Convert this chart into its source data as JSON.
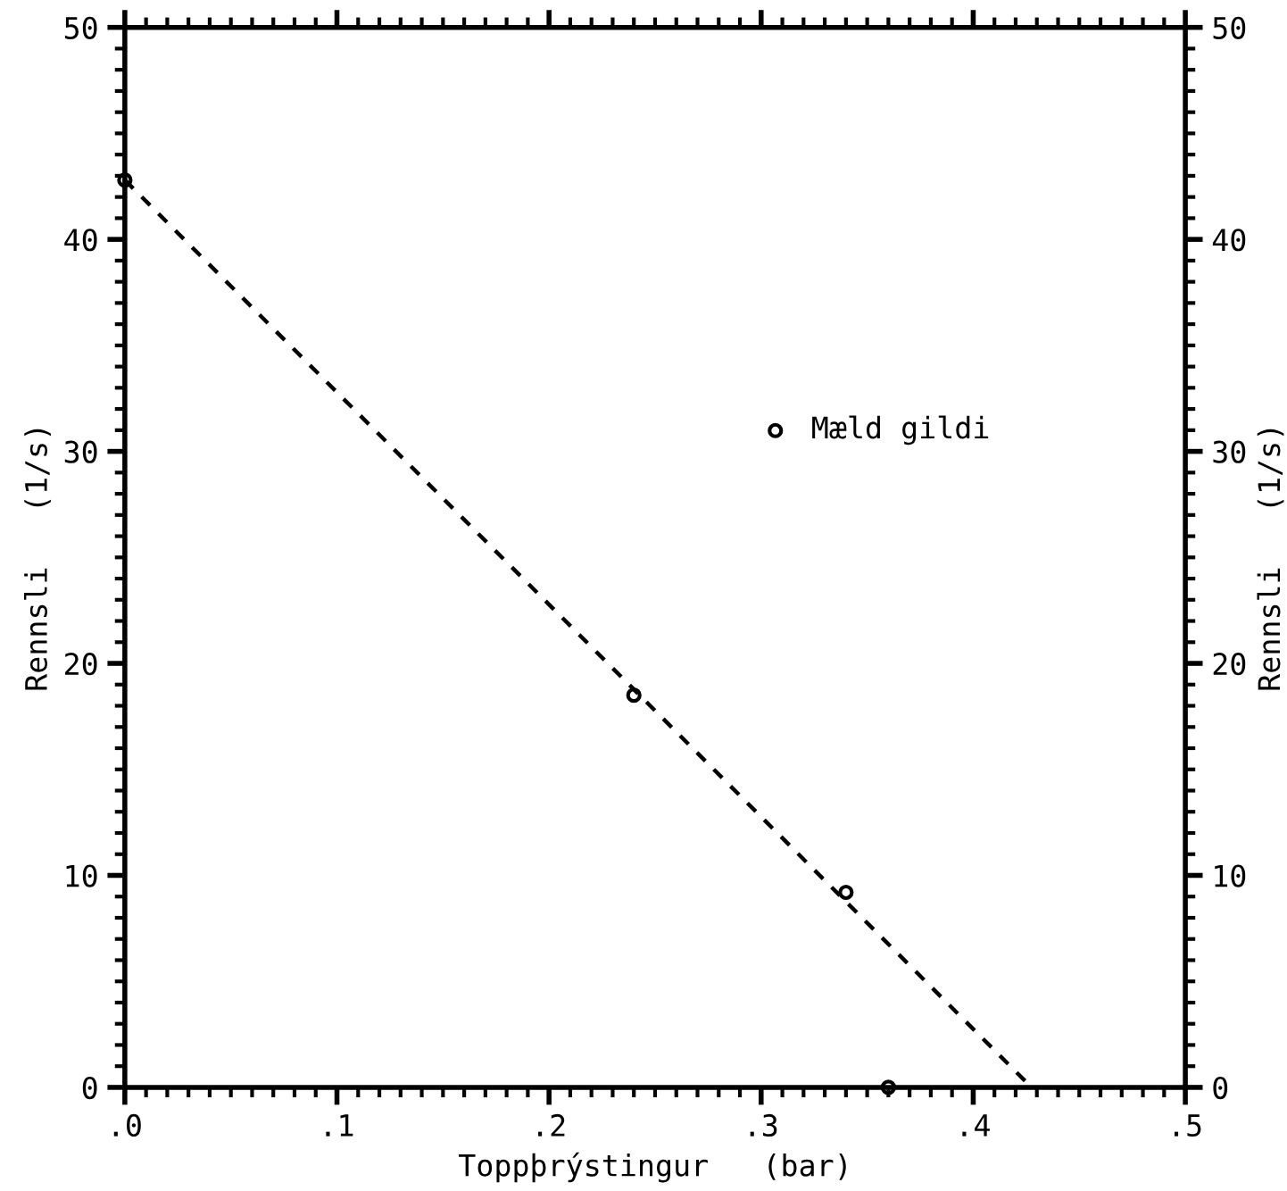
{
  "chart_data": {
    "type": "scatter",
    "xlabel": "Toppþrýstingur   (bar)",
    "ylabel": "Rennsli   (1/s)",
    "y2label": "Rennsli   (1/s)",
    "xlim": [
      0,
      0.5
    ],
    "xticks": [
      {
        "value": 0,
        "label": ".0"
      },
      {
        "value": 0.1,
        "label": ".1"
      },
      {
        "value": 0.2,
        "label": ".2"
      },
      {
        "value": 0.3,
        "label": ".3"
      },
      {
        "value": 0.4,
        "label": ".4"
      },
      {
        "value": 0.5,
        "label": ".5"
      }
    ],
    "ylim": [
      0,
      50
    ],
    "yticks": [
      0,
      10,
      20,
      30,
      40,
      50
    ],
    "y2lim": [
      0,
      50
    ],
    "y2ticks": [
      0,
      10,
      20,
      30,
      40,
      50
    ],
    "grid": false,
    "legend": "right",
    "series": [
      {
        "name": "Mæld gildi",
        "color": "#000000",
        "marker": "circle",
        "x": [
          0,
          0.24,
          0.34,
          0.36
        ],
        "values": [
          42.8,
          18.5,
          9.2,
          0
        ]
      },
      {
        "type": "line",
        "color": "#000000",
        "line_style": "dashed",
        "marker": "none",
        "x": [
          0,
          0.4275
        ],
        "values": [
          42.8,
          0
        ]
      }
    ]
  }
}
